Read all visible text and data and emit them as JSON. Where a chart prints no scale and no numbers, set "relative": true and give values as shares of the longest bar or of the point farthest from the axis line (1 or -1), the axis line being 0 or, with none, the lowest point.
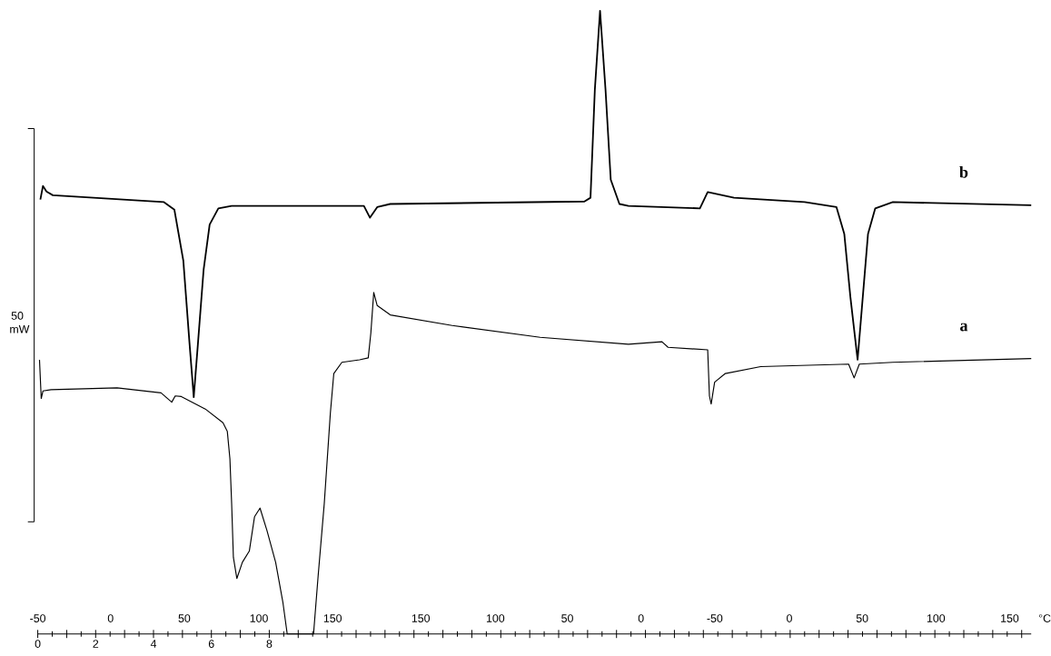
{
  "chart_data": {
    "type": "line",
    "relative": true,
    "ylabel": "50 mW",
    "xlim": [
      0,
      34.33
    ],
    "xticks": [
      0,
      {
        "value": 1,
        "label": null
      },
      2,
      {
        "value": 3,
        "label": null
      },
      4,
      {
        "value": 5,
        "label": null
      },
      6,
      {
        "value": 7,
        "label": null
      },
      8,
      {
        "value": 9,
        "label": null
      },
      {
        "value": 10,
        "label": null
      },
      {
        "value": 11,
        "label": null
      },
      {
        "value": 12,
        "label": null
      },
      {
        "value": 13,
        "label": null
      },
      {
        "value": 14,
        "label": null
      },
      {
        "value": 15,
        "label": null
      },
      {
        "value": 16,
        "label": null
      },
      {
        "value": 17,
        "label": null
      },
      {
        "value": 18,
        "label": null
      },
      {
        "value": 19,
        "label": null
      },
      {
        "value": 20,
        "label": null
      },
      {
        "value": 21,
        "label": null
      },
      {
        "value": 22,
        "label": null
      },
      {
        "value": 23,
        "label": null
      },
      {
        "value": 24,
        "label": null
      },
      {
        "value": 25,
        "label": null
      },
      {
        "value": 26,
        "label": null
      },
      {
        "value": 27,
        "label": null
      },
      {
        "value": 28,
        "label": null
      },
      {
        "value": 29,
        "label": null
      },
      {
        "value": 30,
        "label": null
      },
      {
        "value": 31,
        "label": null
      },
      {
        "value": 32,
        "label": null
      },
      {
        "value": 33,
        "label": null
      },
      {
        "value": 34,
        "label": null
      }
    ],
    "annotations": [
      "-50",
      "0",
      "50",
      "100",
      "150",
      "150",
      "100",
      "50",
      "0",
      "-50",
      "0",
      "50",
      "100",
      "150",
      "°C"
    ],
    "marker": "none",
    "line_style": "solid",
    "series": [
      {
        "name": "b",
        "color": "#000000",
        "x": [
          0.09,
          0.18,
          0.3,
          0.52,
          4.36,
          4.72,
          5.03,
          5.24,
          5.39,
          5.54,
          5.73,
          5.94,
          6.24,
          6.7,
          11.27,
          11.48,
          11.73,
          12.18,
          18.89,
          19.1,
          19.25,
          19.43,
          19.62,
          19.8,
          20.1,
          20.41,
          22.88,
          23.15,
          24.06,
          26.5,
          27.6,
          27.87,
          28.08,
          28.33,
          28.51,
          28.69,
          28.94,
          29.55,
          34.33
        ],
        "values": [
          0.697,
          0.719,
          0.71,
          0.704,
          0.693,
          0.681,
          0.599,
          0.469,
          0.38,
          0.469,
          0.584,
          0.657,
          0.683,
          0.687,
          0.687,
          0.668,
          0.685,
          0.69,
          0.694,
          0.7,
          0.873,
          1.0,
          0.873,
          0.729,
          0.69,
          0.687,
          0.683,
          0.709,
          0.7,
          0.693,
          0.685,
          0.642,
          0.541,
          0.44,
          0.541,
          0.642,
          0.683,
          0.693,
          0.688
        ]
      },
      {
        "name": "a",
        "color": "#000000",
        "x": [
          0.06,
          0.12,
          0.18,
          0.46,
          2.74,
          4.26,
          4.63,
          4.75,
          4.96,
          5.79,
          6.4,
          6.55,
          6.64,
          6.7,
          6.76,
          6.88,
          7.07,
          7.31,
          7.49,
          7.68,
          7.92,
          8.22,
          8.47,
          8.62,
          9.53,
          9.69,
          9.9,
          10.11,
          10.23,
          10.51,
          11.12,
          11.42,
          11.51,
          11.61,
          11.73,
          12.18,
          14.32,
          17.36,
          20.41,
          21.57,
          21.78,
          23.15,
          23.21,
          23.27,
          23.39,
          23.76,
          24.98,
          28.02,
          28.21,
          28.39,
          29.55,
          34.33
        ],
        "values": [
          0.44,
          0.378,
          0.39,
          0.392,
          0.395,
          0.387,
          0.372,
          0.382,
          0.381,
          0.361,
          0.339,
          0.325,
          0.281,
          0.209,
          0.123,
          0.089,
          0.115,
          0.133,
          0.188,
          0.202,
          0.166,
          0.115,
          0.051,
          0,
          0,
          0.094,
          0.209,
          0.354,
          0.418,
          0.436,
          0.44,
          0.443,
          0.483,
          0.548,
          0.527,
          0.512,
          0.495,
          0.476,
          0.465,
          0.469,
          0.46,
          0.456,
          0.382,
          0.369,
          0.404,
          0.418,
          0.429,
          0.433,
          0.411,
          0.433,
          0.436,
          0.442
        ]
      }
    ]
  }
}
